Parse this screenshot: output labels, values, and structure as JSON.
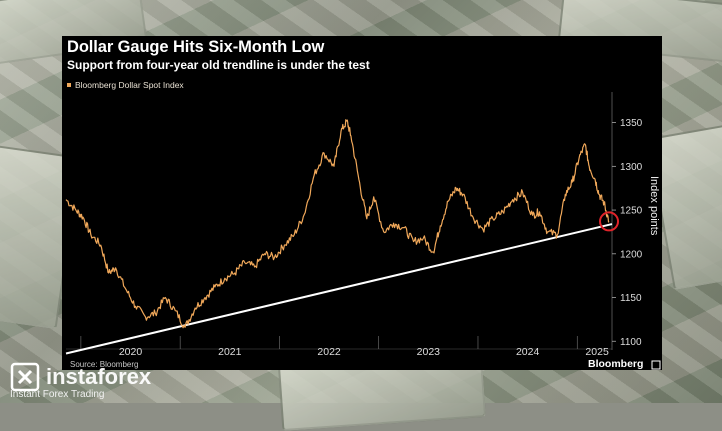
{
  "title": "Dollar Gauge Hits Six-Month Low",
  "subtitle": "Support from four-year old trendline is under the test",
  "legend_label": "Bloomberg Dollar Spot Index",
  "ylabel": "Index points",
  "source": "Source: Bloomberg",
  "brand": "Bloomberg",
  "watermark": {
    "name": "instaforex",
    "tagline": "Instant Forex Trading"
  },
  "colors": {
    "series": "#f0a85a",
    "trendline": "#ffffff",
    "highlight": "#e0242a",
    "panel": "#000000"
  },
  "chart_data": {
    "type": "line",
    "x_tick_labels": [
      "2020",
      "2021",
      "2022",
      "2023",
      "2024",
      "2025"
    ],
    "y_ticks": [
      1100,
      1150,
      1200,
      1250,
      1300,
      1350
    ],
    "ylim": [
      1090,
      1385
    ],
    "xlim": [
      2019.85,
      2025.35
    ],
    "xlabel": "",
    "ylabel": "Index points",
    "series": [
      {
        "name": "Bloomberg Dollar Spot Index",
        "x": [
          2019.85,
          2019.95,
          2020.02,
          2020.1,
          2020.2,
          2020.28,
          2020.35,
          2020.45,
          2020.55,
          2020.65,
          2020.75,
          2020.85,
          2020.95,
          2021.05,
          2021.15,
          2021.25,
          2021.35,
          2021.45,
          2021.55,
          2021.65,
          2021.75,
          2021.85,
          2021.95,
          2022.05,
          2022.15,
          2022.25,
          2022.35,
          2022.45,
          2022.55,
          2022.62,
          2022.68,
          2022.72,
          2022.8,
          2022.88,
          2022.95,
          2023.05,
          2023.15,
          2023.25,
          2023.35,
          2023.45,
          2023.55,
          2023.62,
          2023.7,
          2023.78,
          2023.85,
          2023.95,
          2024.05,
          2024.15,
          2024.25,
          2024.35,
          2024.45,
          2024.55,
          2024.62,
          2024.7,
          2024.8,
          2024.88,
          2024.95,
          2025.02,
          2025.08,
          2025.12,
          2025.18,
          2025.22,
          2025.27,
          2025.32
        ],
        "y": [
          1262,
          1250,
          1242,
          1222,
          1210,
          1178,
          1184,
          1160,
          1140,
          1128,
          1132,
          1150,
          1135,
          1116,
          1138,
          1150,
          1162,
          1172,
          1178,
          1190,
          1185,
          1200,
          1196,
          1210,
          1222,
          1245,
          1290,
          1315,
          1300,
          1340,
          1352,
          1335,
          1285,
          1240,
          1265,
          1225,
          1235,
          1230,
          1214,
          1218,
          1202,
          1232,
          1260,
          1275,
          1268,
          1242,
          1228,
          1240,
          1248,
          1262,
          1270,
          1244,
          1248,
          1225,
          1222,
          1268,
          1282,
          1310,
          1325,
          1300,
          1285,
          1268,
          1258,
          1237
        ]
      }
    ],
    "trendline": {
      "x": [
        2019.85,
        2025.35
      ],
      "y": [
        1086,
        1234
      ]
    },
    "highlight": {
      "x": 2025.32,
      "y": 1237
    }
  }
}
